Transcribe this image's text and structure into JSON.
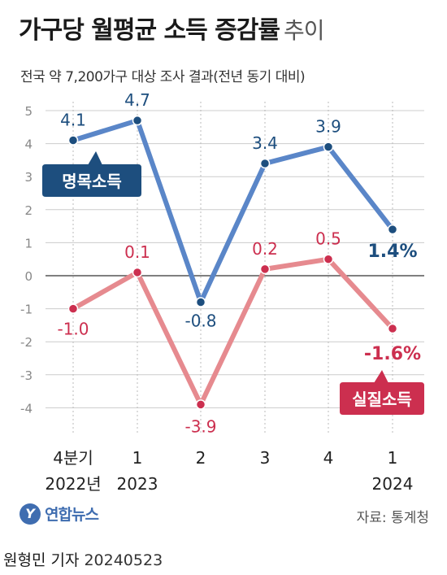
{
  "title_main": "가구당 월평균 소득 증감률",
  "title_tail": "추이",
  "subtitle": "전국 약 7,200가구 대상 조사 결과(전년 동기 대비)",
  "source": "자료: 통계청",
  "logo_text": "연합뉴스",
  "byline": {
    "name": "원형민 기자",
    "date": "20240523"
  },
  "colors": {
    "blue": "#5a86c8",
    "blue_dark": "#1d4e7e",
    "red": "#e68a8f",
    "red_dark": "#cc2f4f",
    "grid": "#cccccc",
    "zero": "#555555"
  },
  "chart_data": {
    "type": "line",
    "categories": [
      "4분기|2022년",
      "1|2023",
      "2",
      "3",
      "4",
      "1|2024"
    ],
    "ylim": [
      -4.5,
      5.4
    ],
    "yticks": [
      5,
      4,
      3,
      2,
      1,
      0,
      -1,
      -2,
      -3,
      -4
    ],
    "grid": true,
    "series": [
      {
        "name": "명목소득",
        "values": [
          4.1,
          4.7,
          -0.8,
          3.4,
          3.9,
          1.4
        ],
        "labels": [
          "4.1",
          "4.7",
          "-0.8",
          "3.4",
          "3.9",
          "1.4%"
        ],
        "color": "#5a86c8",
        "label_color": "#1d4e7e"
      },
      {
        "name": "실질소득",
        "values": [
          -1.0,
          0.1,
          -3.9,
          0.2,
          0.5,
          -1.6
        ],
        "labels": [
          "-1.0",
          "0.1",
          "-3.9",
          "0.2",
          "0.5",
          "-1.6%"
        ],
        "color": "#e68a8f",
        "label_color": "#cc2f4f"
      }
    ]
  }
}
